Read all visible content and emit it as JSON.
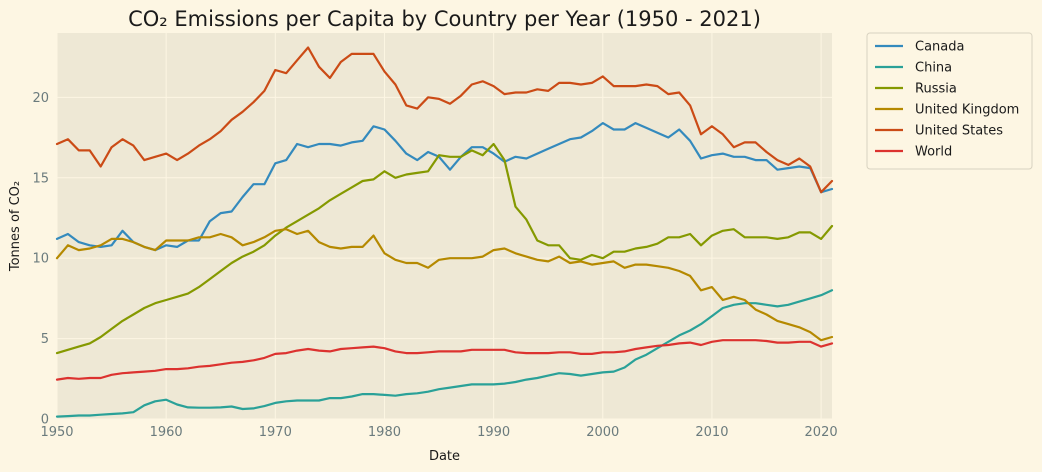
{
  "chart_data": {
    "type": "line",
    "title": "CO₂ Emissions per Capita by Country per Year (1950 - 2021)",
    "xlabel": "Date",
    "ylabel": "Tonnes of CO₂",
    "xlim": [
      1950,
      2021
    ],
    "ylim": [
      0,
      24
    ],
    "x_ticks": [
      1950,
      1960,
      1970,
      1980,
      1990,
      2000,
      2010,
      2020
    ],
    "y_ticks": [
      0,
      5,
      10,
      15,
      20
    ],
    "grid": true,
    "legend_position": "outside-right-top",
    "x": [
      1950,
      1951,
      1952,
      1953,
      1954,
      1955,
      1956,
      1957,
      1958,
      1959,
      1960,
      1961,
      1962,
      1963,
      1964,
      1965,
      1966,
      1967,
      1968,
      1969,
      1970,
      1971,
      1972,
      1973,
      1974,
      1975,
      1976,
      1977,
      1978,
      1979,
      1980,
      1981,
      1982,
      1983,
      1984,
      1985,
      1986,
      1987,
      1988,
      1989,
      1990,
      1991,
      1992,
      1993,
      1994,
      1995,
      1996,
      1997,
      1998,
      1999,
      2000,
      2001,
      2002,
      2003,
      2004,
      2005,
      2006,
      2007,
      2008,
      2009,
      2010,
      2011,
      2012,
      2013,
      2014,
      2015,
      2016,
      2017,
      2018,
      2019,
      2020,
      2021
    ],
    "series": [
      {
        "name": "Canada",
        "color": "#348abd",
        "values": [
          11.2,
          11.5,
          11.0,
          10.8,
          10.7,
          10.8,
          11.7,
          11.0,
          10.7,
          10.5,
          10.8,
          10.7,
          11.1,
          11.1,
          12.3,
          12.8,
          12.9,
          13.8,
          14.6,
          14.6,
          15.9,
          16.1,
          17.1,
          16.9,
          17.1,
          17.1,
          17.0,
          17.2,
          17.3,
          18.2,
          18.0,
          17.3,
          16.5,
          16.1,
          16.6,
          16.3,
          15.5,
          16.3,
          16.9,
          16.9,
          16.5,
          16.0,
          16.3,
          16.2,
          16.5,
          16.8,
          17.1,
          17.4,
          17.5,
          17.9,
          18.4,
          18.0,
          18.0,
          18.4,
          18.1,
          17.8,
          17.5,
          18.0,
          17.3,
          16.2,
          16.4,
          16.5,
          16.3,
          16.3,
          16.1,
          16.1,
          15.5,
          15.6,
          15.7,
          15.6,
          14.1,
          14.3
        ]
      },
      {
        "name": "China",
        "color": "#2aa198",
        "values": [
          0.15,
          0.18,
          0.22,
          0.22,
          0.27,
          0.31,
          0.35,
          0.42,
          0.85,
          1.1,
          1.2,
          0.9,
          0.72,
          0.7,
          0.7,
          0.72,
          0.78,
          0.62,
          0.66,
          0.8,
          1.0,
          1.1,
          1.15,
          1.15,
          1.15,
          1.3,
          1.3,
          1.4,
          1.55,
          1.55,
          1.5,
          1.45,
          1.55,
          1.6,
          1.7,
          1.85,
          1.95,
          2.05,
          2.15,
          2.15,
          2.15,
          2.2,
          2.3,
          2.45,
          2.55,
          2.7,
          2.85,
          2.8,
          2.7,
          2.8,
          2.9,
          2.95,
          3.2,
          3.7,
          4.0,
          4.4,
          4.8,
          5.2,
          5.5,
          5.9,
          6.4,
          6.9,
          7.1,
          7.2,
          7.2,
          7.1,
          7.0,
          7.1,
          7.3,
          7.5,
          7.7,
          8.0
        ]
      },
      {
        "name": "Russia",
        "color": "#859900",
        "values": [
          4.1,
          4.3,
          4.5,
          4.7,
          5.1,
          5.6,
          6.1,
          6.5,
          6.9,
          7.2,
          7.4,
          7.6,
          7.8,
          8.2,
          8.7,
          9.2,
          9.7,
          10.1,
          10.4,
          10.8,
          11.4,
          11.9,
          12.3,
          12.7,
          13.1,
          13.6,
          14.0,
          14.4,
          14.8,
          14.9,
          15.4,
          15.0,
          15.2,
          15.3,
          15.4,
          16.4,
          16.3,
          16.3,
          16.7,
          16.4,
          17.1,
          16.1,
          13.2,
          12.4,
          11.1,
          10.8,
          10.8,
          10.0,
          9.9,
          10.2,
          10.0,
          10.4,
          10.4,
          10.6,
          10.7,
          10.9,
          11.3,
          11.3,
          11.5,
          10.8,
          11.4,
          11.7,
          11.8,
          11.3,
          11.3,
          11.3,
          11.2,
          11.3,
          11.6,
          11.6,
          11.2,
          12.0
        ]
      },
      {
        "name": "United Kingdom",
        "color": "#b58900",
        "values": [
          10.0,
          10.8,
          10.5,
          10.6,
          10.8,
          11.2,
          11.2,
          11.0,
          10.7,
          10.5,
          11.1,
          11.1,
          11.1,
          11.3,
          11.3,
          11.5,
          11.3,
          10.8,
          11.0,
          11.3,
          11.7,
          11.8,
          11.5,
          11.7,
          11.0,
          10.7,
          10.6,
          10.7,
          10.7,
          11.4,
          10.3,
          9.9,
          9.7,
          9.7,
          9.4,
          9.9,
          10.0,
          10.0,
          10.0,
          10.1,
          10.5,
          10.6,
          10.3,
          10.1,
          9.9,
          9.8,
          10.1,
          9.7,
          9.8,
          9.6,
          9.7,
          9.8,
          9.4,
          9.6,
          9.6,
          9.5,
          9.4,
          9.2,
          8.9,
          8.0,
          8.2,
          7.4,
          7.6,
          7.4,
          6.8,
          6.5,
          6.1,
          5.9,
          5.7,
          5.4,
          4.9,
          5.1
        ]
      },
      {
        "name": "United States",
        "color": "#cb4b16",
        "values": [
          17.1,
          17.4,
          16.7,
          16.7,
          15.7,
          16.9,
          17.4,
          17.0,
          16.1,
          16.3,
          16.5,
          16.1,
          16.5,
          17.0,
          17.4,
          17.9,
          18.6,
          19.1,
          19.7,
          20.4,
          21.7,
          21.5,
          22.3,
          23.1,
          21.9,
          21.2,
          22.2,
          22.7,
          22.7,
          22.7,
          21.6,
          20.8,
          19.5,
          19.3,
          20.0,
          19.9,
          19.6,
          20.1,
          20.8,
          21.0,
          20.7,
          20.2,
          20.3,
          20.3,
          20.5,
          20.4,
          20.9,
          20.9,
          20.8,
          20.9,
          21.3,
          20.7,
          20.7,
          20.7,
          20.8,
          20.7,
          20.2,
          20.3,
          19.5,
          17.7,
          18.2,
          17.7,
          16.9,
          17.2,
          17.2,
          16.6,
          16.1,
          15.8,
          16.2,
          15.7,
          14.1,
          14.8
        ]
      },
      {
        "name": "World",
        "color": "#dc322f",
        "values": [
          2.45,
          2.55,
          2.5,
          2.55,
          2.55,
          2.75,
          2.85,
          2.9,
          2.95,
          3.0,
          3.1,
          3.1,
          3.15,
          3.25,
          3.3,
          3.4,
          3.5,
          3.55,
          3.65,
          3.8,
          4.05,
          4.1,
          4.25,
          4.35,
          4.25,
          4.2,
          4.35,
          4.4,
          4.45,
          4.5,
          4.4,
          4.2,
          4.1,
          4.1,
          4.15,
          4.2,
          4.2,
          4.2,
          4.3,
          4.3,
          4.3,
          4.3,
          4.15,
          4.1,
          4.1,
          4.1,
          4.15,
          4.15,
          4.05,
          4.05,
          4.15,
          4.15,
          4.2,
          4.35,
          4.45,
          4.55,
          4.6,
          4.7,
          4.75,
          4.6,
          4.8,
          4.9,
          4.9,
          4.9,
          4.9,
          4.85,
          4.75,
          4.75,
          4.8,
          4.8,
          4.5,
          4.7
        ]
      }
    ]
  }
}
